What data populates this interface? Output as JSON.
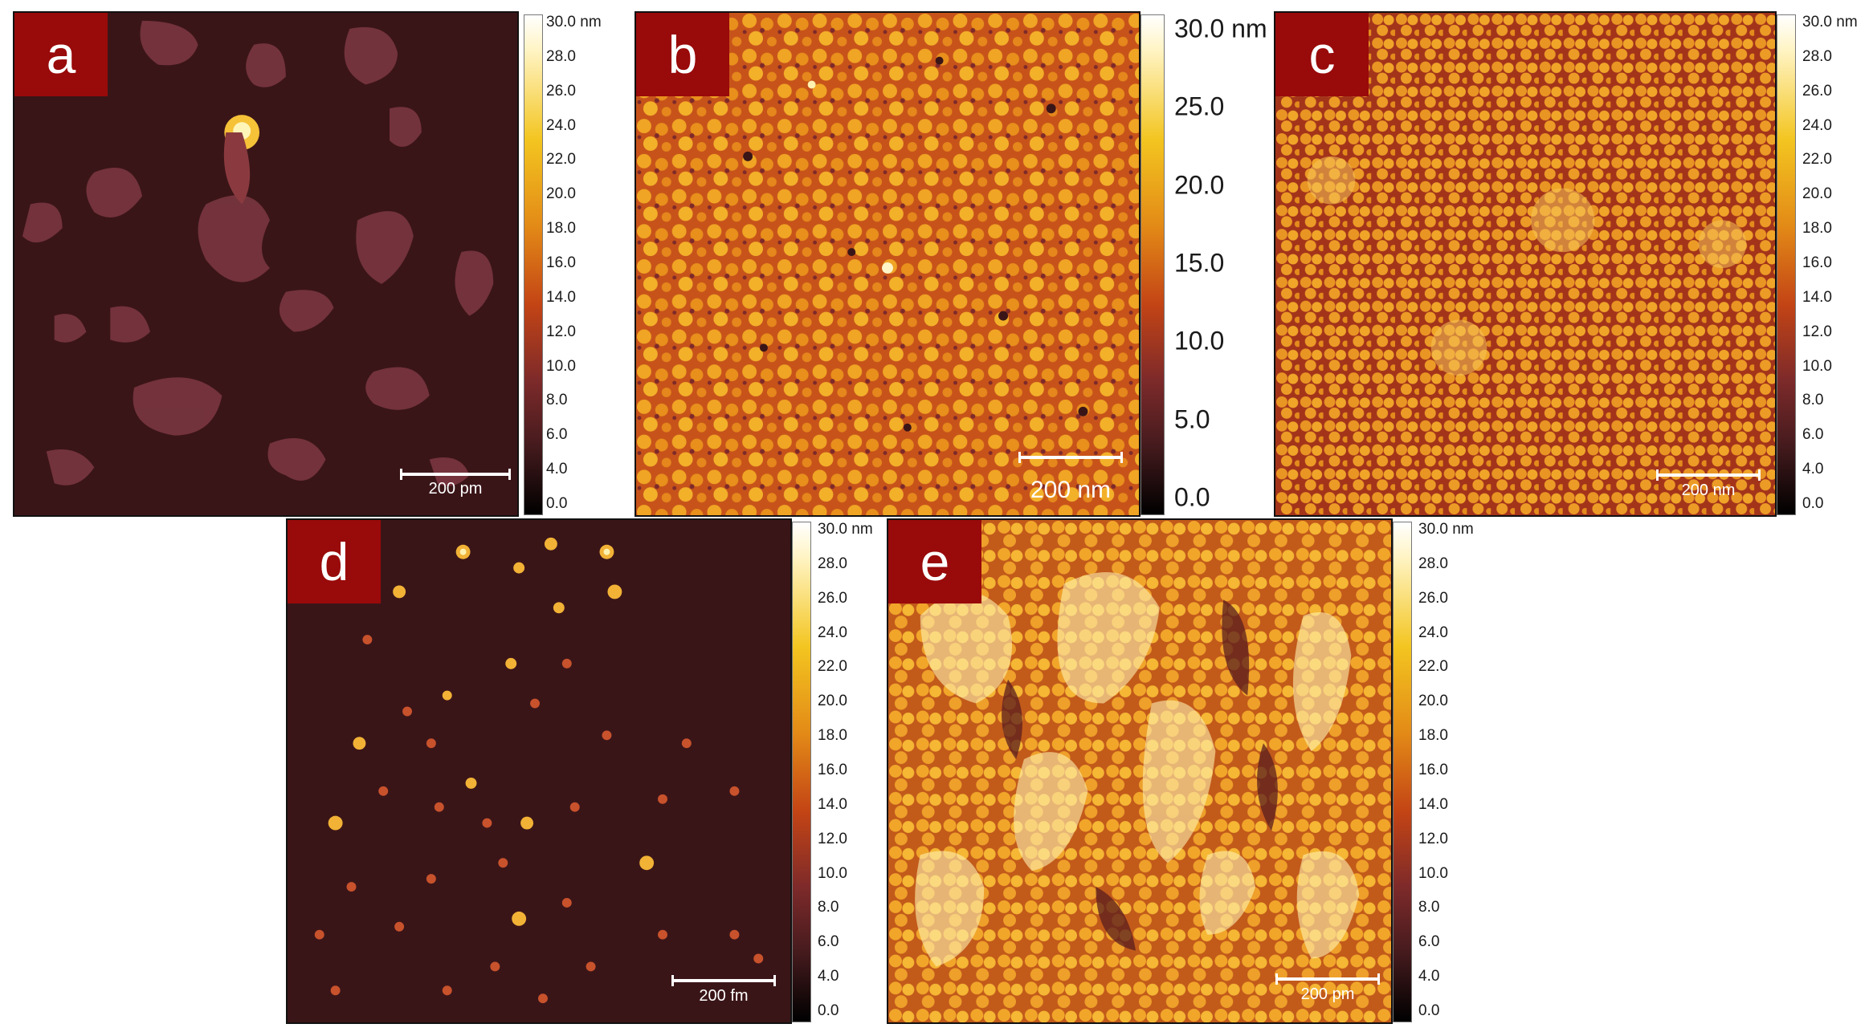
{
  "colors": {
    "label_bg": "#990a0a",
    "label_fg": "#ffffff",
    "scale_bar": "#ffffff"
  },
  "panels": {
    "a": {
      "label": "a",
      "scale_text": "200 pm",
      "ticks": [
        "30.0 nm",
        "28.0",
        "26.0",
        "24.0",
        "22.0",
        "20.0",
        "18.0",
        "16.0",
        "14.0",
        "12.0",
        "10.0",
        "8.0",
        "6.0",
        "4.0",
        "0.0"
      ]
    },
    "b": {
      "label": "b",
      "scale_text": "200 nm",
      "ticks": [
        "30.0 nm",
        "25.0",
        "20.0",
        "15.0",
        "10.0",
        "5.0",
        "0.0"
      ]
    },
    "c": {
      "label": "c",
      "scale_text": "200 nm",
      "ticks": [
        "30.0 nm",
        "28.0",
        "26.0",
        "24.0",
        "22.0",
        "20.0",
        "18.0",
        "16.0",
        "14.0",
        "12.0",
        "10.0",
        "8.0",
        "6.0",
        "4.0",
        "0.0"
      ]
    },
    "d": {
      "label": "d",
      "scale_text": "200 fm",
      "ticks": [
        "30.0 nm",
        "28.0",
        "26.0",
        "24.0",
        "22.0",
        "20.0",
        "18.0",
        "16.0",
        "14.0",
        "12.0",
        "10.0",
        "8.0",
        "6.0",
        "4.0",
        "0.0"
      ]
    },
    "e": {
      "label": "e",
      "scale_text": "200 pm",
      "ticks": [
        "30.0 nm",
        "28.0",
        "26.0",
        "24.0",
        "22.0",
        "20.0",
        "18.0",
        "16.0",
        "14.0",
        "12.0",
        "10.0",
        "8.0",
        "6.0",
        "4.0",
        "0.0"
      ]
    }
  }
}
